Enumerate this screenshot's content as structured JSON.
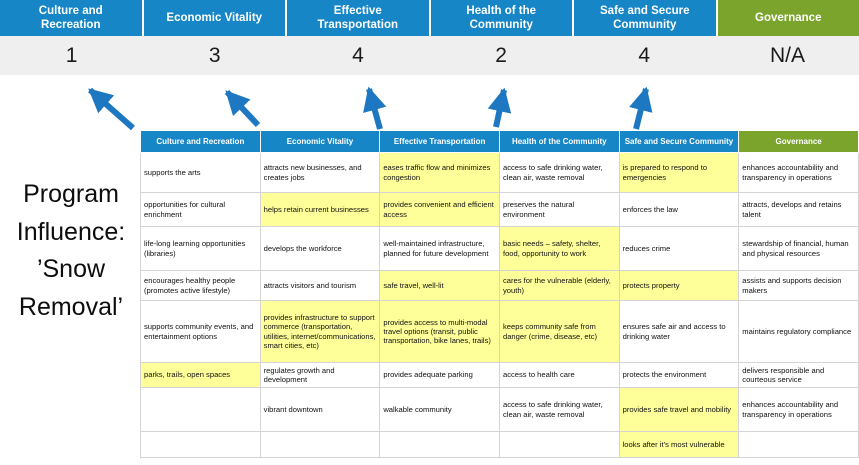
{
  "title_lines": [
    "Program",
    "Influence:",
    "’Snow",
    "Removal’"
  ],
  "colors": {
    "pillar_blue": "#1786C6",
    "governance_green": "#7AA42B",
    "score_band_bg": "#EFEFEF",
    "highlight_yellow": "#FFFF99",
    "arrow_blue": "#1D78C1"
  },
  "pillars": [
    {
      "label": "Culture and Recreation",
      "score": "1",
      "color": "#1786C6"
    },
    {
      "label": "Economic Vitality",
      "score": "3",
      "color": "#1786C6"
    },
    {
      "label": "Effective Transportation",
      "score": "4",
      "color": "#1786C6"
    },
    {
      "label": "Health of the Community",
      "score": "2",
      "color": "#1786C6"
    },
    {
      "label": "Safe and Secure Community",
      "score": "4",
      "color": "#1786C6"
    },
    {
      "label": "Governance",
      "score": "N/A",
      "color": "#7AA42B"
    }
  ],
  "matrix": {
    "headers": [
      {
        "label": "Culture and Recreation",
        "color": "#1786C6"
      },
      {
        "label": "Economic Vitality",
        "color": "#1786C6"
      },
      {
        "label": "Effective Transportation",
        "color": "#1786C6"
      },
      {
        "label": "Health of the Community",
        "color": "#1786C6"
      },
      {
        "label": "Safe and Secure Community",
        "color": "#1786C6"
      },
      {
        "label": "Governance",
        "color": "#7AA42B"
      }
    ],
    "rows": [
      [
        {
          "t": "supports the arts",
          "h": false
        },
        {
          "t": "attracts new businesses, and creates jobs",
          "h": false
        },
        {
          "t": "eases traffic flow and minimizes congestion",
          "h": true
        },
        {
          "t": "access to safe drinking water, clean air, waste removal",
          "h": false
        },
        {
          "t": "is prepared to respond to emergencies",
          "h": true
        },
        {
          "t": "enhances accountability and transparency in operations",
          "h": false
        }
      ],
      [
        {
          "t": "opportunities for cultural enrichment",
          "h": false
        },
        {
          "t": "helps retain current businesses",
          "h": true
        },
        {
          "t": "provides convenient and efficient access",
          "h": true
        },
        {
          "t": "preserves the natural environment",
          "h": false
        },
        {
          "t": "enforces the law",
          "h": false
        },
        {
          "t": "attracts, develops and retains talent",
          "h": false
        }
      ],
      [
        {
          "t": "life-long learning opportunities (libraries)",
          "h": false
        },
        {
          "t": "develops the workforce",
          "h": false
        },
        {
          "t": "well-maintained infrastructure, planned for future development",
          "h": false
        },
        {
          "t": "basic needs – safety, shelter, food, opportunity to work",
          "h": true
        },
        {
          "t": "reduces crime",
          "h": false
        },
        {
          "t": "stewardship of financial, human and physical resources",
          "h": false
        }
      ],
      [
        {
          "t": "encourages healthy people (promotes active lifestyle)",
          "h": false
        },
        {
          "t": "attracts visitors and tourism",
          "h": false
        },
        {
          "t": "safe travel, well-lit",
          "h": true
        },
        {
          "t": "cares for the vulnerable (elderly, youth)",
          "h": true
        },
        {
          "t": "protects property",
          "h": true
        },
        {
          "t": "assists and supports decision makers",
          "h": false
        }
      ],
      [
        {
          "t": "supports community events, and entertainment options",
          "h": false
        },
        {
          "t": "provides infrastructure to support commerce (transportation, utilities, internet/communications, smart cities, etc)",
          "h": true
        },
        {
          "t": "provides access to multi-modal travel options (transit, public transportation, bike lanes, trails)",
          "h": true
        },
        {
          "t": "keeps community safe from danger (crime, disease, etc)",
          "h": true
        },
        {
          "t": "ensures safe air and access to drinking water",
          "h": false
        },
        {
          "t": "maintains regulatory compliance",
          "h": false
        }
      ],
      [
        {
          "t": "parks, trails, open spaces",
          "h": true
        },
        {
          "t": "regulates growth and development",
          "h": false
        },
        {
          "t": "provides adequate parking",
          "h": false
        },
        {
          "t": "access to health care",
          "h": false
        },
        {
          "t": "protects the environment",
          "h": false
        },
        {
          "t": "delivers responsible and courteous service",
          "h": false
        }
      ],
      [
        {
          "t": "",
          "h": false
        },
        {
          "t": "vibrant downtown",
          "h": false
        },
        {
          "t": "walkable community",
          "h": false
        },
        {
          "t": "access to safe drinking water, clean air, waste removal",
          "h": false
        },
        {
          "t": "provides safe travel and mobility",
          "h": true
        },
        {
          "t": "enhances accountability and transparency in operations",
          "h": false
        }
      ],
      [
        {
          "t": "",
          "h": false
        },
        {
          "t": "",
          "h": false
        },
        {
          "t": "",
          "h": false
        },
        {
          "t": "",
          "h": false
        },
        {
          "t": "looks after it’s most vulnerable",
          "h": true
        },
        {
          "t": "",
          "h": false
        }
      ]
    ]
  }
}
